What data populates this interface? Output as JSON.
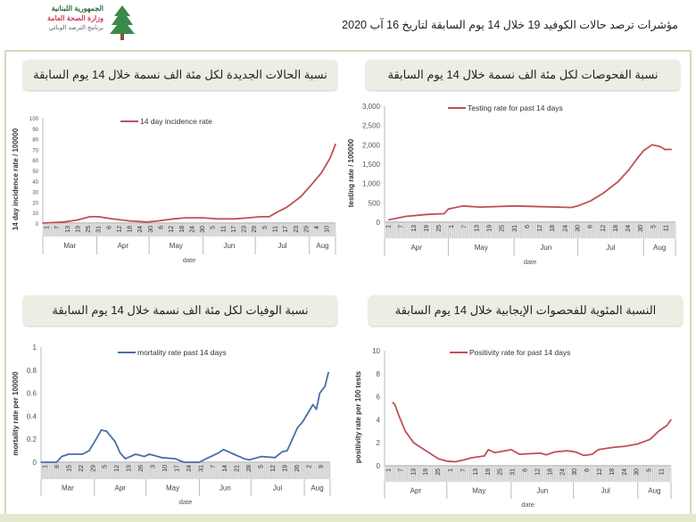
{
  "header": {
    "logo_lines": [
      "الجمهورية اللبنانية",
      "وزارة الصحة العامة",
      "برنامج الترصد الوبائي"
    ],
    "title": "مؤشرات ترصد حالات الكوفيد 19 خلال  14 يوم السابقة لتاريخ  16 آب 2020"
  },
  "panels": [
    {
      "title": "نسبة الحالات الجديدة لكل مئة الف نسمة خلال 14 يوم السابقة"
    },
    {
      "title": "نسبة الفحوصات لكل مئة الف نسمة خلال 14 يوم السابقة"
    },
    {
      "title": "نسبة الوفيات لكل مئة الف نسمة خلال 14 يوم السابقة"
    },
    {
      "title": "النسبة المئوية للفحصوات الإيجابية خلال 14 يوم السابقة"
    }
  ],
  "colors": {
    "red_series": "#c0505a",
    "blue_series": "#4a6fa5",
    "frame": "#d6d9b8",
    "title_bg": "#eceee3"
  },
  "chart_data": [
    {
      "type": "line",
      "legend": "14 day incidence rate",
      "legend_position": "top-center",
      "xlabel": "date",
      "ylabel": "14 day incidence rate / 100000",
      "ylim": [
        0,
        100
      ],
      "yticks": [
        "0",
        "10",
        "20",
        "30",
        "40",
        "50",
        "60",
        "70",
        "80",
        "90",
        "100"
      ],
      "xlim": [
        0,
        168
      ],
      "xtick_labels": [
        "1",
        "7",
        "13",
        "19",
        "25",
        "31",
        "6",
        "12",
        "18",
        "24",
        "30",
        "6",
        "12",
        "18",
        "24",
        "30",
        "5",
        "11",
        "17",
        "23",
        "29",
        "5",
        "11",
        "17",
        "23",
        "29",
        "4",
        "10"
      ],
      "months": [
        "Mar",
        "Apr",
        "May",
        "Jun",
        "Jul",
        "Aug"
      ],
      "month_starts": [
        0,
        31,
        61,
        92,
        122,
        153
      ],
      "x": [
        0,
        12,
        20,
        27,
        32,
        40,
        50,
        60,
        66,
        75,
        82,
        92,
        100,
        110,
        118,
        125,
        130,
        134,
        140,
        148,
        155,
        160,
        165,
        168
      ],
      "y": [
        0,
        1,
        3,
        6,
        6,
        4,
        2,
        1,
        2,
        4,
        5,
        5,
        4,
        4,
        5,
        6,
        6,
        10,
        15,
        25,
        38,
        48,
        62,
        75
      ]
    },
    {
      "type": "line",
      "legend": "Testing rate for past 14 days",
      "legend_position": "top-center",
      "xlabel": "date",
      "ylabel": "testing rate / 100000",
      "ylim": [
        0,
        3000
      ],
      "yticks": [
        "0",
        "500",
        "1,000",
        "1,500",
        "2,000",
        "2,500",
        "3,000"
      ],
      "xlim": [
        0,
        137
      ],
      "xtick_labels": [
        "1",
        "7",
        "13",
        "19",
        "25",
        "1",
        "7",
        "13",
        "19",
        "25",
        "31",
        "6",
        "12",
        "18",
        "24",
        "30",
        "6",
        "12",
        "18",
        "24",
        "30",
        "5",
        "11"
      ],
      "months": [
        "Apr",
        "May",
        "Jun",
        "Jul",
        "Aug"
      ],
      "month_starts": [
        0,
        30,
        61,
        91,
        122
      ],
      "x": [
        2,
        10,
        20,
        28,
        30,
        37,
        45,
        61,
        75,
        88,
        91,
        97,
        103,
        110,
        115,
        119,
        122,
        126,
        130,
        132,
        135
      ],
      "y": [
        60,
        150,
        200,
        220,
        340,
        420,
        390,
        420,
        400,
        380,
        420,
        550,
        750,
        1050,
        1350,
        1650,
        1850,
        2000,
        1950,
        1880,
        1880
      ]
    },
    {
      "type": "line",
      "legend": "mortality rate past 14 days",
      "legend_position": "top-center",
      "xlabel": "date",
      "ylabel": "mortality rate per 100000",
      "ylim": [
        0,
        1
      ],
      "yticks": [
        "0",
        "0.2",
        "0.4",
        "0.6",
        "0.8",
        "1"
      ],
      "xlim": [
        0,
        168
      ],
      "xtick_labels": [
        "1",
        "8",
        "15",
        "22",
        "29",
        "5",
        "12",
        "19",
        "26",
        "3",
        "10",
        "17",
        "24",
        "31",
        "7",
        "14",
        "21",
        "28",
        "5",
        "12",
        "19",
        "26",
        "2",
        "9"
      ],
      "months": [
        "Mar",
        "Apr",
        "May",
        "Jun",
        "Jul",
        "Aug"
      ],
      "month_starts": [
        0,
        31,
        61,
        92,
        122,
        153
      ],
      "x": [
        0,
        9,
        12,
        16,
        24,
        28,
        32,
        35,
        38,
        43,
        46,
        49,
        55,
        60,
        63,
        70,
        78,
        83,
        92,
        96,
        103,
        106,
        112,
        118,
        121,
        128,
        136,
        140,
        143,
        146,
        149,
        152,
        156,
        158,
        160,
        162,
        165,
        167
      ],
      "y": [
        0,
        0,
        0.05,
        0.07,
        0.07,
        0.1,
        0.2,
        0.28,
        0.27,
        0.18,
        0.08,
        0.03,
        0.07,
        0.05,
        0.07,
        0.04,
        0.03,
        0,
        0,
        0.03,
        0.08,
        0.11,
        0.07,
        0.03,
        0.02,
        0.05,
        0.04,
        0.09,
        0.1,
        0.2,
        0.3,
        0.35,
        0.45,
        0.5,
        0.46,
        0.6,
        0.66,
        0.78
      ]
    },
    {
      "type": "line",
      "legend": "Positivity rate for past 14 days",
      "legend_position": "top-center",
      "xlabel": "date",
      "ylabel": "positivity rate per 100 tests",
      "ylim": [
        0,
        10
      ],
      "yticks": [
        "0",
        "2",
        "4",
        "6",
        "8",
        "10"
      ],
      "xlim": [
        0,
        138
      ],
      "xtick_labels": [
        "1",
        "7",
        "13",
        "19",
        "25",
        "1",
        "7",
        "13",
        "19",
        "25",
        "31",
        "6",
        "12",
        "18",
        "24",
        "30",
        "6",
        "12",
        "18",
        "24",
        "30",
        "5",
        "11"
      ],
      "months": [
        "Apr",
        "May",
        "Jun",
        "Jul",
        "Aug"
      ],
      "month_starts": [
        0,
        30,
        61,
        91,
        122
      ],
      "x": [
        4,
        5,
        7,
        10,
        14,
        20,
        26,
        30,
        34,
        38,
        42,
        48,
        50,
        53,
        58,
        61,
        65,
        75,
        78,
        82,
        88,
        92,
        96,
        100,
        103,
        110,
        116,
        122,
        128,
        132,
        136,
        138
      ],
      "y": [
        5.5,
        5.3,
        4.3,
        3,
        2,
        1.3,
        0.6,
        0.4,
        0.35,
        0.5,
        0.7,
        0.85,
        1.4,
        1.15,
        1.3,
        1.4,
        1.0,
        1.1,
        0.95,
        1.2,
        1.3,
        1.2,
        0.9,
        1.0,
        1.4,
        1.6,
        1.7,
        1.9,
        2.3,
        3.0,
        3.5,
        4.0
      ]
    }
  ]
}
